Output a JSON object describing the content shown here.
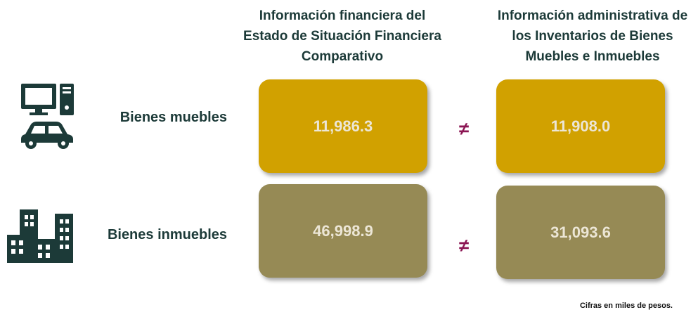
{
  "columns": [
    "Información financiera del Estado de Situación Financiera Comparativo",
    "Información administrativa de los Inventarios de Bienes Muebles e Inmuebles"
  ],
  "rows": [
    {
      "label": "Bienes muebles",
      "financial": "11,986.3",
      "administrative": "11,908.0",
      "relation": "≠"
    },
    {
      "label": "Bienes inmuebles",
      "financial": "46,998.9",
      "administrative": "31,093.6",
      "relation": "≠"
    }
  ],
  "note": "Cifras en miles de pesos."
}
